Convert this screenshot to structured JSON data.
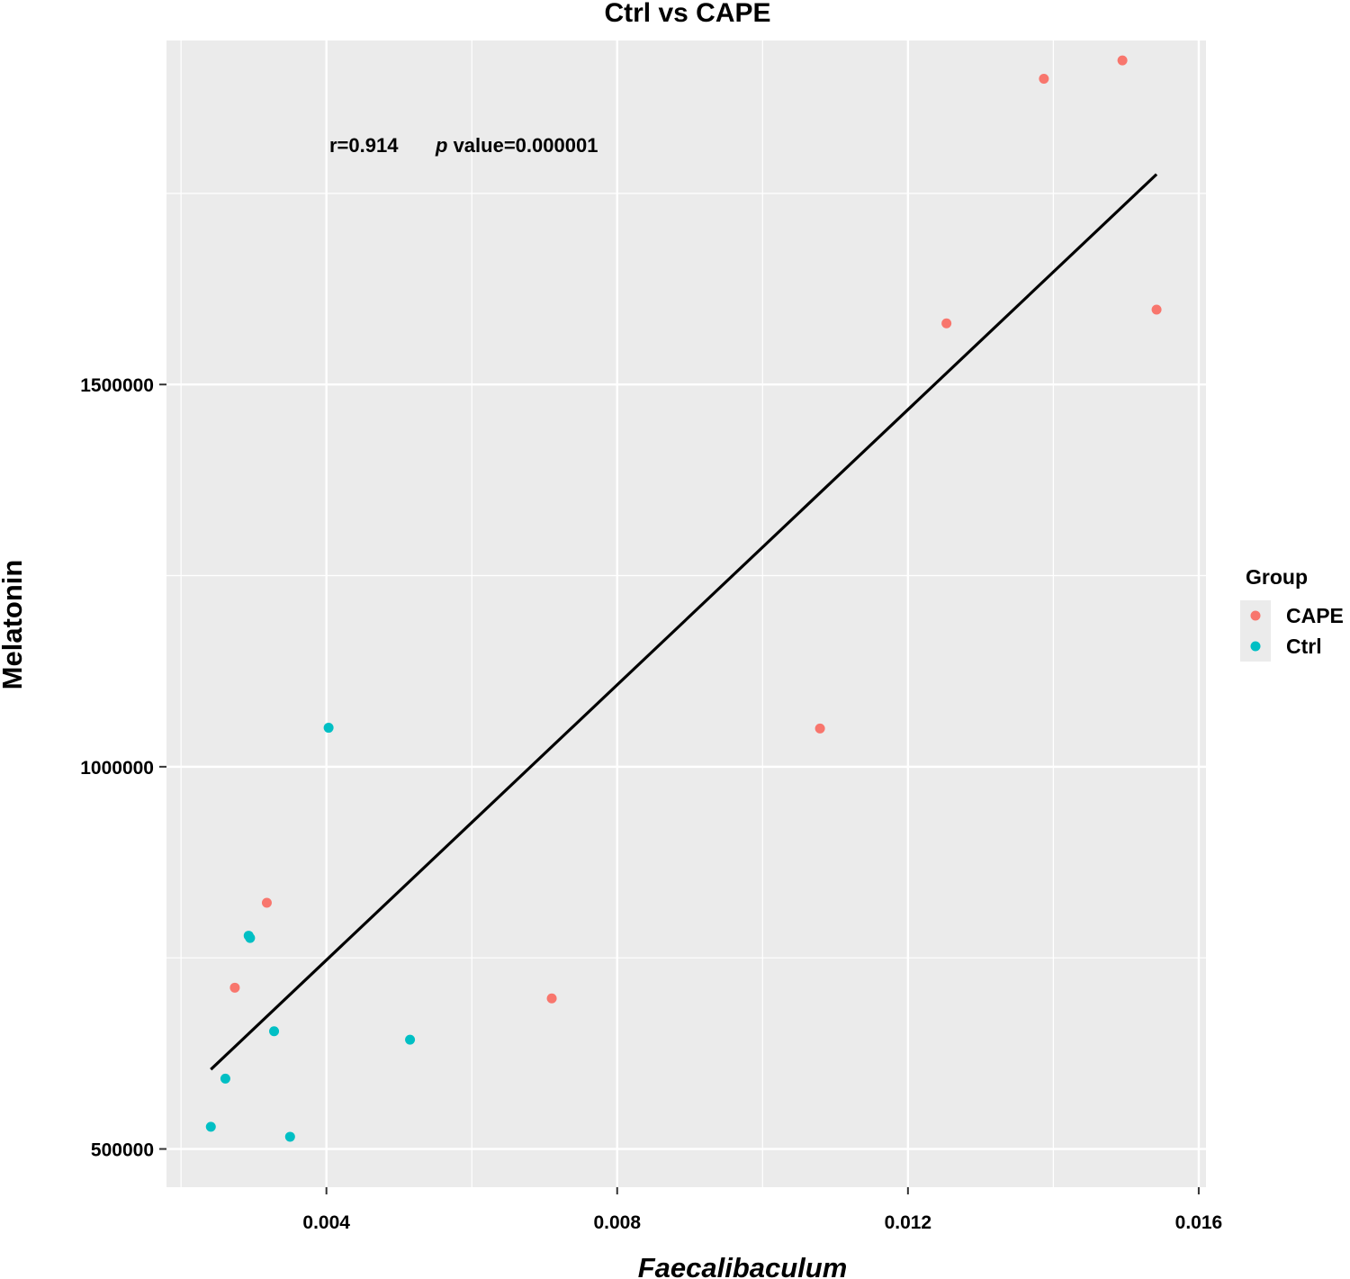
{
  "chart_data": {
    "type": "scatter",
    "title": "Ctrl vs CAPE",
    "xlabel": "Faecalibaculum",
    "ylabel": "Melatonin",
    "xlim": [
      0.0018,
      0.0161
    ],
    "ylim": [
      450000,
      1950000
    ],
    "x_ticks": [
      0.004,
      0.008,
      0.012,
      0.016
    ],
    "x_tick_labels": [
      "0.004",
      "0.008",
      "0.012",
      "0.016"
    ],
    "x_minor_ticks": [
      0.002,
      0.006,
      0.01,
      0.014
    ],
    "y_ticks": [
      500000,
      1000000,
      1500000
    ],
    "y_tick_labels": [
      "500000",
      "1000000",
      "1500000"
    ],
    "y_minor_ticks": [
      750000,
      1250000,
      1750000
    ],
    "grid": true,
    "background": "#ebebeb",
    "annotation": {
      "r_text": "r=0.914",
      "p_italic": "p",
      "p_text": " value=0.000001"
    },
    "legend": {
      "title": "Group",
      "position": "right",
      "entries": [
        {
          "label": "CAPE",
          "color": "#f8766d"
        },
        {
          "label": "Ctrl",
          "color": "#00bfc4"
        }
      ]
    },
    "series": [
      {
        "name": "CAPE",
        "color": "#f8766d",
        "points": [
          {
            "x": 0.00318,
            "y": 822000
          },
          {
            "x": 0.00274,
            "y": 711000
          },
          {
            "x": 0.0071,
            "y": 697000
          },
          {
            "x": 0.01079,
            "y": 1050000
          },
          {
            "x": 0.01253,
            "y": 1580000
          },
          {
            "x": 0.01387,
            "y": 1900000
          },
          {
            "x": 0.01495,
            "y": 1924000
          },
          {
            "x": 0.01542,
            "y": 1598000
          }
        ]
      },
      {
        "name": "Ctrl",
        "color": "#00bfc4",
        "points": [
          {
            "x": 0.00403,
            "y": 1051000
          },
          {
            "x": 0.00293,
            "y": 779000
          },
          {
            "x": 0.00295,
            "y": 776000
          },
          {
            "x": 0.00328,
            "y": 654000
          },
          {
            "x": 0.00515,
            "y": 643000
          },
          {
            "x": 0.00261,
            "y": 592000
          },
          {
            "x": 0.00241,
            "y": 529000
          },
          {
            "x": 0.0035,
            "y": 516000
          }
        ]
      }
    ],
    "fit_line": {
      "color": "#000000",
      "from": {
        "x": 0.00241,
        "y": 604000
      },
      "to": {
        "x": 0.01542,
        "y": 1775000
      }
    }
  }
}
